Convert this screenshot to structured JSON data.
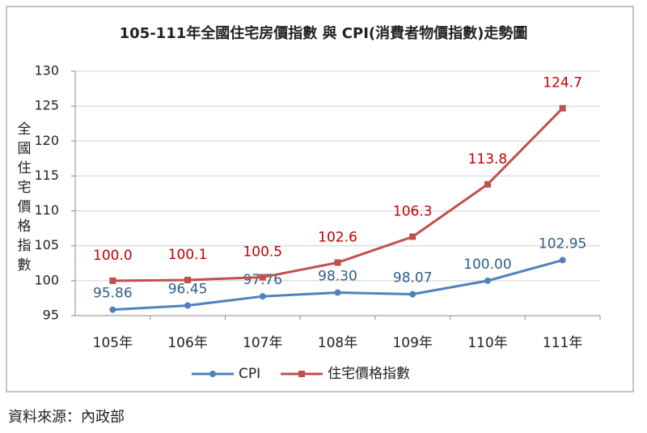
{
  "chart_data": {
    "type": "line",
    "title": "105-111年全國住宅房價指數 與 CPI(消費者物價指數)走勢圖",
    "ylabel": "全國住宅價格指數",
    "categories": [
      "105年",
      "106年",
      "107年",
      "108年",
      "109年",
      "110年",
      "111年"
    ],
    "series": [
      {
        "name": "CPI",
        "color": "#4f81bd",
        "marker": "circle",
        "label_color": "#2f5d8c",
        "values": [
          95.86,
          96.45,
          97.76,
          98.3,
          98.07,
          100,
          102.95
        ],
        "value_labels": [
          "95.86",
          "96.45",
          "97.76",
          "98.30",
          "98.07",
          "100.00",
          "102.95"
        ]
      },
      {
        "name": "住宅價格指數",
        "color": "#c0504d",
        "marker": "square",
        "label_color": "#c00000",
        "values": [
          100,
          100.1,
          100.5,
          102.6,
          106.3,
          113.8,
          124.7
        ],
        "value_labels": [
          "100.0",
          "100.1",
          "100.5",
          "102.6",
          "106.3",
          "113.8",
          "124.7"
        ]
      }
    ],
    "ylim": [
      95,
      130
    ],
    "yticks": [
      95,
      100,
      105,
      110,
      115,
      120,
      125,
      130
    ],
    "grid": true,
    "legend": "bottom",
    "source": "資料來源：內政部"
  }
}
